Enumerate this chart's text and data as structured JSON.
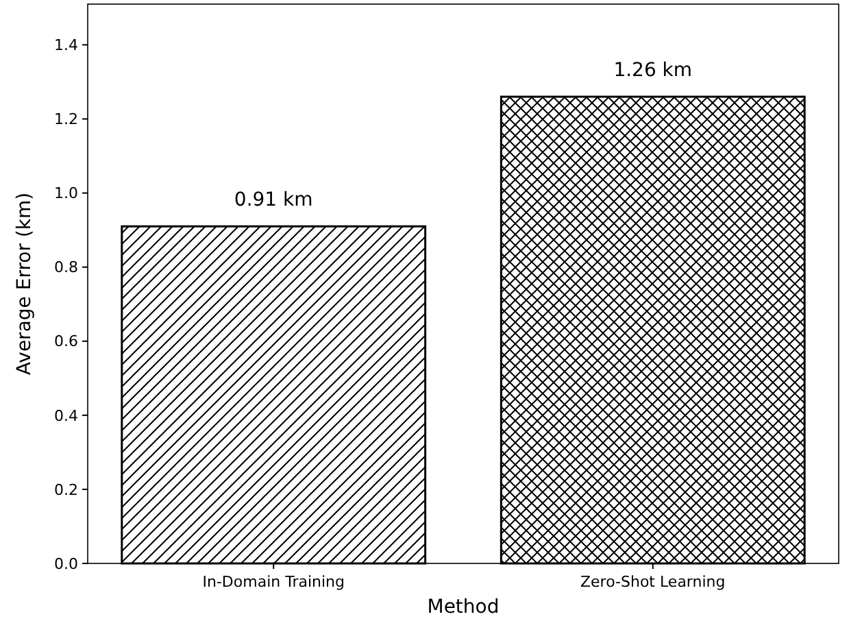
{
  "chart_data": {
    "type": "bar",
    "xlabel": "Method",
    "ylabel": "Average Error (km)",
    "categories": [
      "In-Domain Training",
      "Zero-Shot Learning"
    ],
    "values": [
      0.91,
      1.26
    ],
    "value_labels": [
      "0.91 km",
      "1.26 km"
    ],
    "colors": [
      "#ffffff",
      "#ffffff"
    ],
    "ylim": [
      0,
      1.51
    ],
    "yticks": [
      {
        "value": 0,
        "label": "0.0"
      },
      0.2,
      0.4,
      0.6,
      0.8,
      {
        "value": 1,
        "label": "1.0"
      },
      1.2,
      1.4
    ],
    "grid": false
  }
}
